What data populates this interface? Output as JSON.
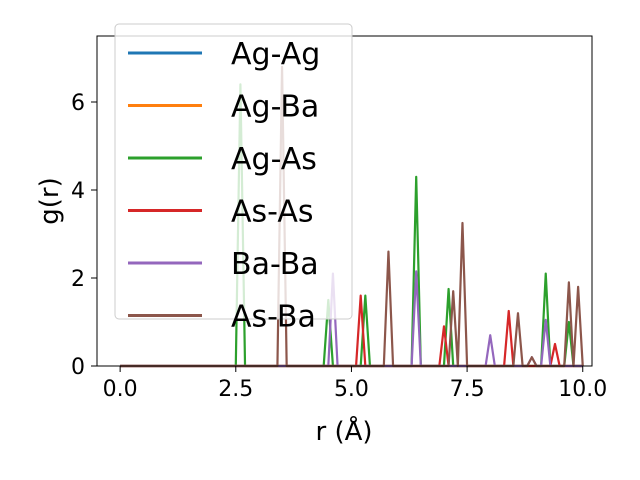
{
  "chart_data": {
    "type": "line",
    "xlabel": "r (Å)",
    "ylabel": "g(r)",
    "xlim": [
      -0.5,
      10.2
    ],
    "ylim": [
      0,
      7.5
    ],
    "xticks": [
      0.0,
      2.5,
      5.0,
      7.5,
      10.0
    ],
    "xtick_labels": [
      "0.0",
      "2.5",
      "5.0",
      "7.5",
      "10.0"
    ],
    "yticks": [
      0,
      2,
      4,
      6
    ],
    "ytick_labels": [
      "0",
      "2",
      "4",
      "6"
    ],
    "legend_position": "top-left",
    "grid": false,
    "series": [
      {
        "name": "Ag-Ag",
        "color": "#1f77b4",
        "x": [
          0,
          10
        ],
        "y": [
          0,
          0
        ]
      },
      {
        "name": "Ag-Ba",
        "color": "#ff7f0e",
        "x": [
          0,
          10
        ],
        "y": [
          0,
          0
        ]
      },
      {
        "name": "Ag-As",
        "color": "#2ca02c",
        "x": [
          0,
          2.5,
          2.6,
          2.7,
          4.4,
          4.5,
          4.6,
          5.2,
          5.3,
          5.4,
          6.3,
          6.4,
          6.5,
          7.0,
          7.1,
          7.2,
          9.1,
          9.2,
          9.3,
          9.6,
          9.7,
          9.8,
          10.0
        ],
        "y": [
          0,
          0,
          6.4,
          0,
          0,
          1.5,
          0,
          0,
          1.6,
          0,
          0,
          4.3,
          0,
          0,
          1.75,
          0,
          0,
          2.1,
          0,
          0,
          1.0,
          0,
          0
        ]
      },
      {
        "name": "As-As",
        "color": "#d62728",
        "x": [
          0,
          5.1,
          5.2,
          5.3,
          6.9,
          7.0,
          7.1,
          8.3,
          8.4,
          8.5,
          9.3,
          9.4,
          9.5,
          10.0
        ],
        "y": [
          0,
          0,
          1.6,
          0,
          0,
          0.9,
          0,
          0,
          1.25,
          0,
          0,
          0.5,
          0,
          0
        ]
      },
      {
        "name": "Ba-Ba",
        "color": "#9467bd",
        "x": [
          0,
          4.5,
          4.6,
          4.7,
          6.3,
          6.4,
          6.5,
          7.9,
          8.0,
          8.1,
          8.8,
          8.9,
          9.0,
          9.1,
          9.2,
          9.3,
          10.0
        ],
        "y": [
          0,
          0,
          2.1,
          0,
          0,
          2.15,
          0,
          0,
          0.7,
          0,
          0,
          0.2,
          0,
          0,
          1.05,
          0,
          0
        ]
      },
      {
        "name": "As-Ba",
        "color": "#8c564b",
        "x": [
          0,
          3.4,
          3.5,
          3.6,
          5.7,
          5.8,
          5.9,
          7.1,
          7.2,
          7.3,
          7.4,
          7.5,
          8.5,
          8.6,
          8.7,
          8.8,
          8.9,
          9.0,
          9.6,
          9.7,
          9.8,
          9.9,
          10.0
        ],
        "y": [
          0,
          0,
          6.8,
          0,
          0,
          2.6,
          0,
          0,
          1.7,
          0,
          3.25,
          0,
          0,
          1.2,
          0,
          0,
          0.2,
          0,
          0,
          1.9,
          0,
          1.8,
          0
        ]
      }
    ]
  }
}
